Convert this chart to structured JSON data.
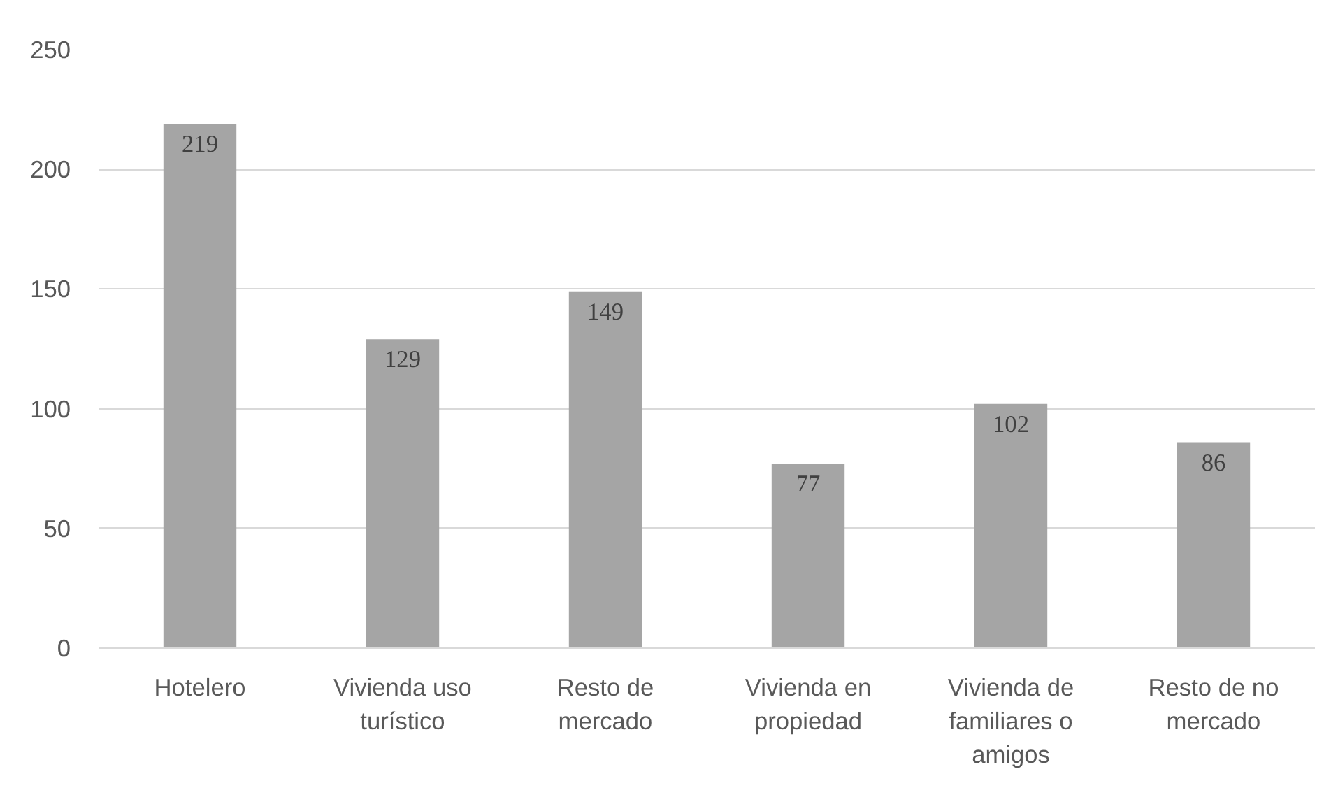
{
  "chart_data": {
    "type": "bar",
    "categories": [
      "Hotelero",
      "Vivienda uso turístico",
      "Resto de mercado",
      "Vivienda en propiedad",
      "Vivienda de familiares o amigos",
      "Resto de no mercado"
    ],
    "values": [
      219,
      129,
      149,
      77,
      102,
      86
    ],
    "color": "#a5a5a5",
    "ylim": [
      0,
      250
    ],
    "yticks": [
      0,
      50,
      100,
      150,
      200,
      250
    ],
    "grid": "y",
    "data_labels": true
  }
}
